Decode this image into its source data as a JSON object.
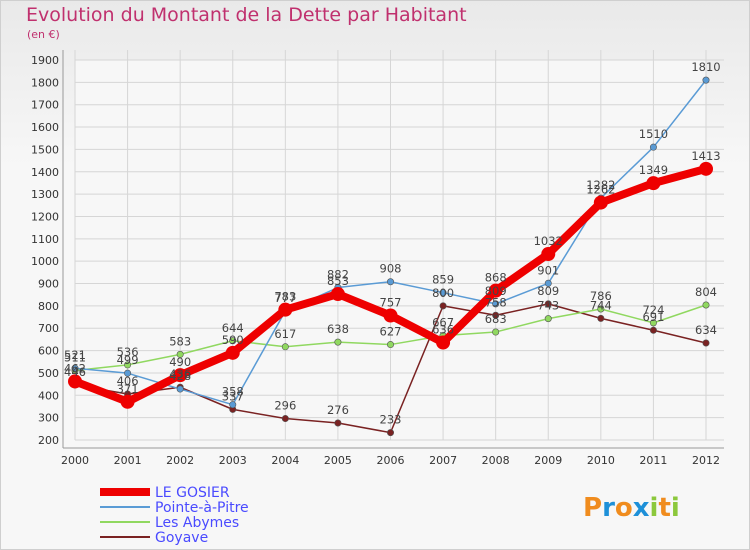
{
  "chart_data": {
    "type": "line",
    "title": "Evolution du Montant de la Dette par Habitant",
    "subtitle": "(en €)",
    "x": [
      "2000",
      "2001",
      "2002",
      "2003",
      "2004",
      "2005",
      "2006",
      "2007",
      "2008",
      "2009",
      "2010",
      "2011",
      "2012"
    ],
    "ylim": [
      200,
      1900
    ],
    "yticks": [
      200,
      300,
      400,
      500,
      600,
      700,
      800,
      900,
      1000,
      1100,
      1200,
      1300,
      1400,
      1500,
      1600,
      1700,
      1800,
      1900
    ],
    "grid": true,
    "legend_position": "bottom-left",
    "series": [
      {
        "name": "LE GOSIER",
        "color": "#ee0000",
        "values": [
          462,
          371,
          490,
          590,
          783,
          853,
          757,
          636,
          868,
          1032,
          1262,
          1349,
          1413
        ]
      },
      {
        "name": "Pointe-à-Pitre",
        "color": "#5a9bd5",
        "values": [
          521,
          499,
          428,
          358,
          777,
          882,
          908,
          859,
          809,
          901,
          1282,
          1510,
          1810
        ]
      },
      {
        "name": "Les Abymes",
        "color": "#90d860",
        "values": [
          511,
          536,
          583,
          644,
          617,
          638,
          627,
          667,
          683,
          743,
          786,
          724,
          804
        ]
      },
      {
        "name": "Goyave",
        "color": "#7a2222",
        "values": [
          446,
          406,
          436,
          337,
          296,
          276,
          233,
          800,
          758,
          809,
          744,
          691,
          634
        ]
      }
    ]
  },
  "logo": {
    "text": "Proxiti",
    "letters": [
      "P",
      "r",
      "o",
      "x",
      "i",
      "t",
      "i"
    ],
    "colors": [
      "#f08c1e",
      "#1e90d8",
      "#f08c1e",
      "#1e90d8",
      "#8cc83c",
      "#f08c1e",
      "#8cc83c"
    ]
  }
}
